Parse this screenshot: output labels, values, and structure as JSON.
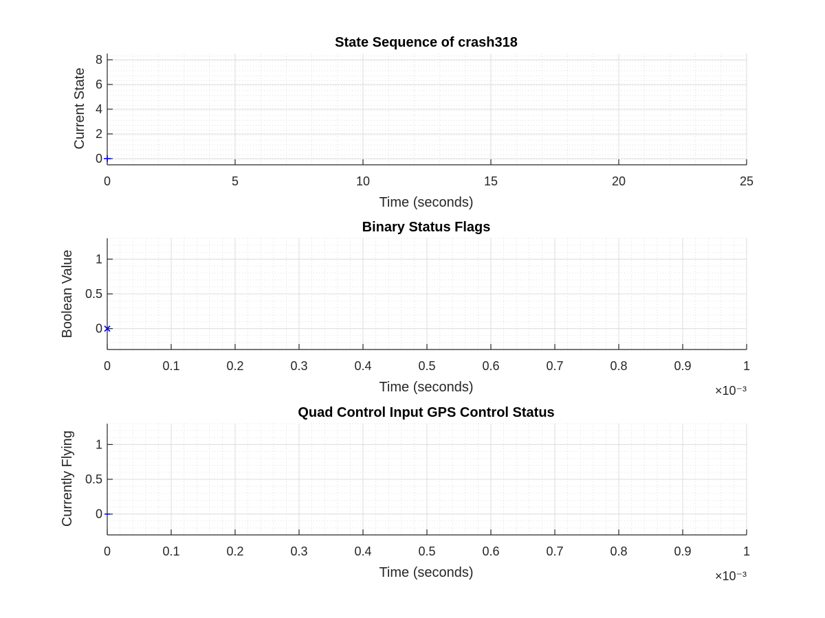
{
  "chart_data": [
    {
      "type": "scatter",
      "title": "State Sequence of crash318",
      "xlabel": "Time (seconds)",
      "ylabel": "Current State",
      "xlim": [
        0,
        25
      ],
      "ylim": [
        -0.5,
        8.5
      ],
      "xticks": [
        0,
        5,
        10,
        15,
        20,
        25
      ],
      "xtick_labels": [
        "0",
        "5",
        "10",
        "15",
        "20",
        "25"
      ],
      "yticks": [
        0,
        2,
        4,
        6,
        8
      ],
      "ytick_labels": [
        "0",
        "2",
        "4",
        "6",
        "8"
      ],
      "x_exponent_label": "",
      "grid": true,
      "minor_grid": true,
      "marker": "+",
      "color": "#0000ff",
      "points": [
        {
          "x": 0,
          "y": 0
        }
      ]
    },
    {
      "type": "scatter",
      "title": "Binary Status Flags",
      "xlabel": "Time (seconds)",
      "ylabel": "Boolean Value",
      "xlim": [
        0,
        0.001
      ],
      "ylim": [
        -0.3,
        1.3
      ],
      "xticks": [
        0,
        0.0001,
        0.0002,
        0.0003,
        0.0004,
        0.0005,
        0.0006,
        0.0007,
        0.0008,
        0.0009,
        0.001
      ],
      "xtick_labels": [
        "0",
        "0.1",
        "0.2",
        "0.3",
        "0.4",
        "0.5",
        "0.6",
        "0.7",
        "0.8",
        "0.9",
        "1"
      ],
      "yticks": [
        0,
        0.5,
        1
      ],
      "ytick_labels": [
        "0",
        "0.5",
        "1"
      ],
      "x_exponent_label": "×10⁻³",
      "grid": true,
      "minor_grid": true,
      "marker": "x",
      "color": "#0000ff",
      "points": [
        {
          "x": 0,
          "y": 0
        }
      ]
    },
    {
      "type": "scatter",
      "title": "Quad Control Input GPS Control Status",
      "xlabel": "Time (seconds)",
      "ylabel": "Currently Flying",
      "xlim": [
        0,
        0.001
      ],
      "ylim": [
        -0.3,
        1.3
      ],
      "xticks": [
        0,
        0.0001,
        0.0002,
        0.0003,
        0.0004,
        0.0005,
        0.0006,
        0.0007,
        0.0008,
        0.0009,
        0.001
      ],
      "xtick_labels": [
        "0",
        "0.1",
        "0.2",
        "0.3",
        "0.4",
        "0.5",
        "0.6",
        "0.7",
        "0.8",
        "0.9",
        "1"
      ],
      "yticks": [
        0,
        0.5,
        1
      ],
      "ytick_labels": [
        "0",
        "0.5",
        "1"
      ],
      "x_exponent_label": "×10⁻³",
      "grid": true,
      "minor_grid": true,
      "marker": "-",
      "color": "#0000ff",
      "points": [
        {
          "x": 0,
          "y": 0
        }
      ]
    }
  ]
}
